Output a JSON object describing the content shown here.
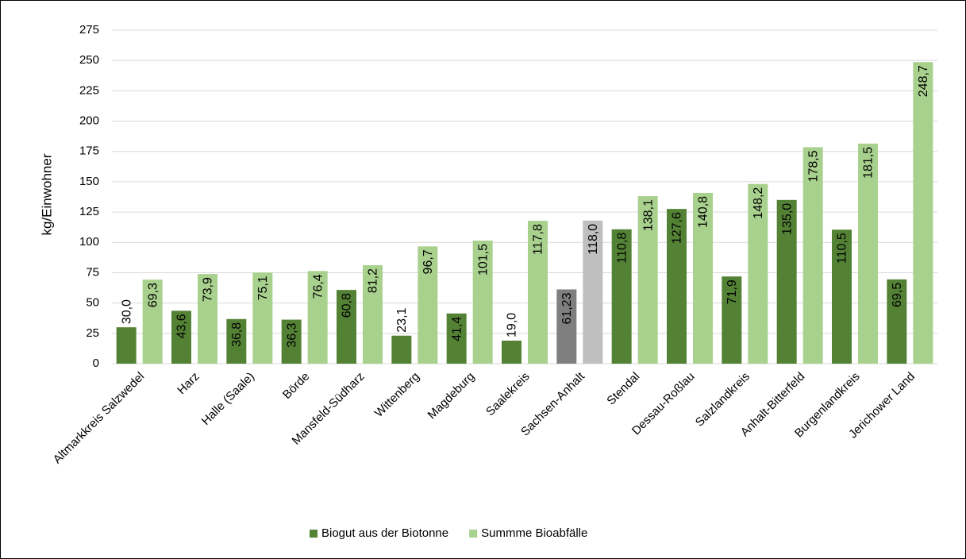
{
  "chart_data": {
    "type": "bar",
    "y_label": "kg/Einwohner",
    "categories": [
      "Altmarkkreis Salzwedel",
      "Harz",
      "Halle (Saale)",
      "Börde",
      "Mansfeld-Südharz",
      "Wittenberg",
      "Magdeburg",
      "Saalekreis",
      "Sachsen-Anhalt",
      "Stendal",
      "Dessau-Roßlau",
      "Salzlandkreis",
      "Anhalt-Bitterfeld",
      "Burgenlandkreis",
      "Jerichower Land"
    ],
    "series": [
      {
        "name": "Biogut aus der Biotonne",
        "color": "#548235",
        "colors": [
          "#548235",
          "#548235",
          "#548235",
          "#548235",
          "#548235",
          "#548235",
          "#548235",
          "#548235",
          "#7f7f7f",
          "#548235",
          "#548235",
          "#548235",
          "#548235",
          "#548235",
          "#548235"
        ],
        "values": [
          30.0,
          43.6,
          36.8,
          36.3,
          60.8,
          23.1,
          41.4,
          19.0,
          61.23,
          110.8,
          127.6,
          71.9,
          135.0,
          110.5,
          69.5
        ],
        "value_labels": [
          "30,0",
          "43,6",
          "36,8",
          "36,3",
          "60,8",
          "23,1",
          "41,4",
          "19,0",
          "61,23",
          "110,8",
          "127,6",
          "71,9",
          "135,0",
          "110,5",
          "69,5"
        ]
      },
      {
        "name": "Summme Bioabfälle",
        "color": "#a9d18e",
        "colors": [
          "#a9d18e",
          "#a9d18e",
          "#a9d18e",
          "#a9d18e",
          "#a9d18e",
          "#a9d18e",
          "#a9d18e",
          "#a9d18e",
          "#bfbfbf",
          "#a9d18e",
          "#a9d18e",
          "#a9d18e",
          "#a9d18e",
          "#a9d18e",
          "#a9d18e"
        ],
        "values": [
          69.3,
          73.9,
          75.1,
          76.4,
          81.2,
          96.7,
          101.5,
          117.8,
          118.0,
          138.1,
          140.8,
          148.2,
          178.5,
          181.5,
          248.7
        ],
        "value_labels": [
          "69,3",
          "73,9",
          "75,1",
          "76,4",
          "81,2",
          "96,7",
          "101,5",
          "117,8",
          "118,0",
          "138,1",
          "140,8",
          "148,2",
          "178,5",
          "181,5",
          "248,7"
        ]
      }
    ],
    "ylim": [
      0,
      275
    ],
    "yticks": [
      0,
      25,
      50,
      75,
      100,
      125,
      150,
      175,
      200,
      225,
      250,
      275
    ],
    "grid": true,
    "legend": "bottom"
  }
}
